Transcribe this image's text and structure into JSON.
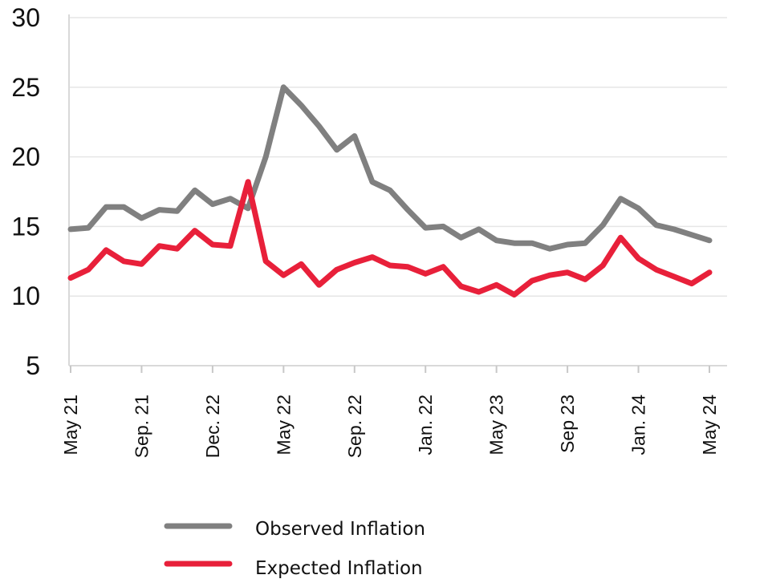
{
  "chart_data": {
    "type": "line",
    "title": "",
    "xlabel": "",
    "ylabel": "",
    "ylim": [
      5,
      30
    ],
    "yticks": [
      "5",
      "10",
      "15",
      "20",
      "25",
      "30"
    ],
    "grid": true,
    "legend_position": "bottom",
    "x_tick_labels": [
      "May 21",
      "Sep. 21",
      "Dec. 22",
      "May 22",
      "Sep. 22",
      "Jan. 22",
      "May 23",
      "Sep 23",
      "Jan. 24",
      "May 24"
    ],
    "series": [
      {
        "name": "Observed Inflation",
        "color": "#808080",
        "values": [
          14.8,
          14.9,
          16.4,
          16.4,
          15.6,
          16.2,
          16.1,
          17.6,
          16.6,
          17.0,
          16.3,
          20.0,
          25.0,
          23.7,
          22.2,
          20.5,
          21.5,
          18.2,
          17.6,
          16.2,
          14.9,
          15.0,
          14.2,
          14.8,
          14.0,
          13.8,
          13.8,
          13.4,
          13.7,
          13.8,
          15.1,
          17.0,
          16.3,
          15.1,
          14.8,
          14.4,
          14.0
        ]
      },
      {
        "name": "Expected Inflation",
        "color": "#e8203a",
        "values": [
          11.3,
          11.9,
          13.3,
          12.5,
          12.3,
          13.6,
          13.4,
          14.7,
          13.7,
          13.6,
          18.2,
          12.5,
          11.5,
          12.3,
          10.8,
          11.9,
          12.4,
          12.8,
          12.2,
          12.1,
          11.6,
          12.1,
          10.7,
          10.3,
          10.8,
          10.1,
          11.1,
          11.5,
          11.7,
          11.2,
          12.2,
          14.2,
          12.7,
          11.9,
          11.4,
          10.9,
          11.7
        ]
      }
    ]
  }
}
